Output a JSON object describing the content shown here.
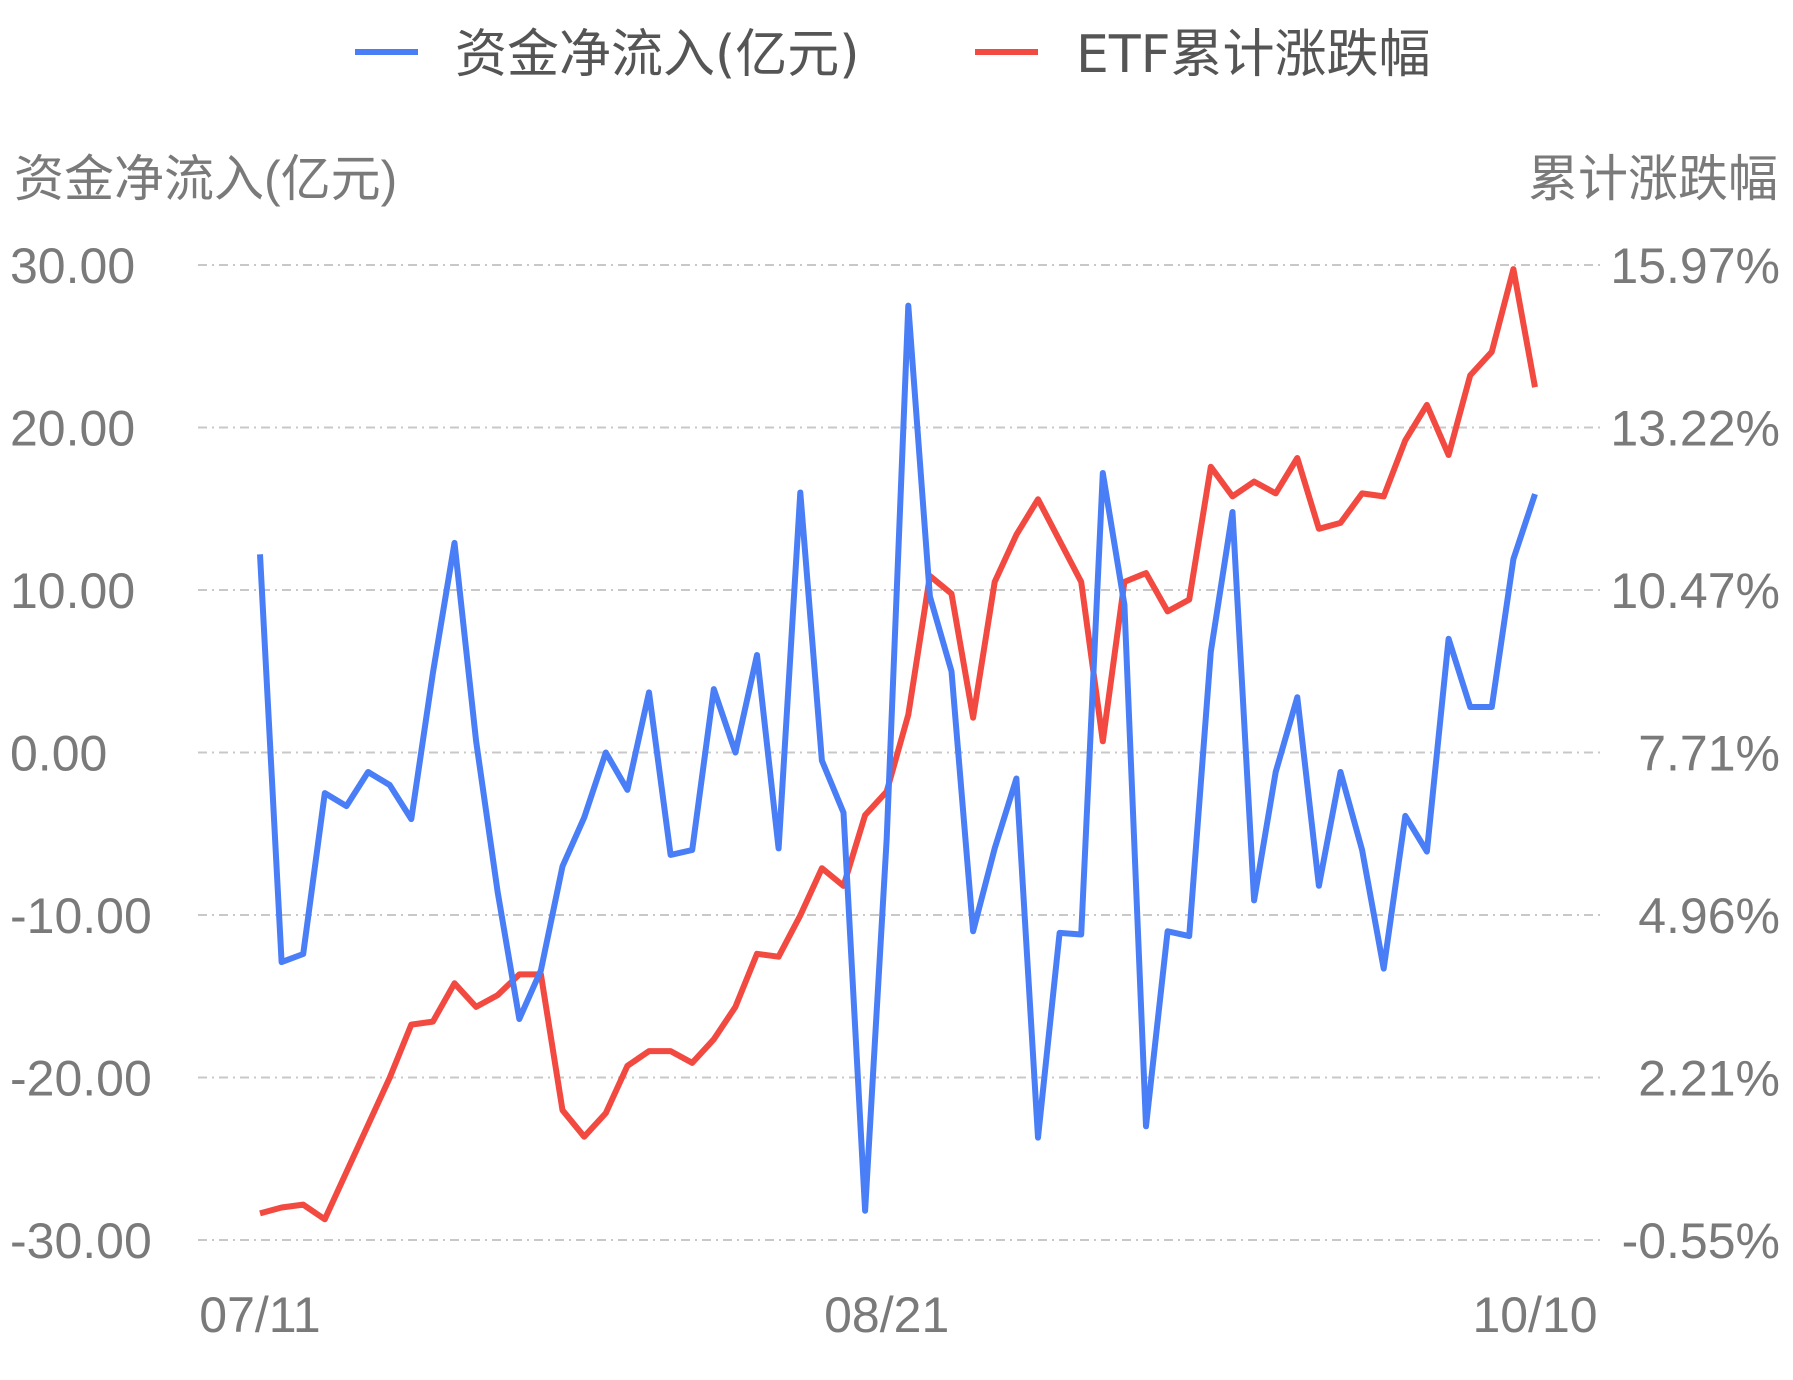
{
  "chart_data": {
    "type": "line",
    "legend": {
      "position": "top-center",
      "items": [
        {
          "name": "资金净流入(亿元)",
          "color": "#4a7ef7"
        },
        {
          "name": "ETF累计涨跌幅",
          "color": "#f24a40"
        }
      ]
    },
    "y_left": {
      "label": "资金净流入(亿元)",
      "ticks": [
        "30.00",
        "20.00",
        "10.00",
        "0.00",
        "-10.00",
        "-20.00",
        "-30.00"
      ],
      "range": [
        -30,
        30
      ]
    },
    "y_right": {
      "label": "累计涨跌幅",
      "ticks": [
        "15.97%",
        "13.22%",
        "10.47%",
        "7.71%",
        "4.96%",
        "2.21%",
        "-0.55%"
      ],
      "range": [
        -0.55,
        15.97
      ]
    },
    "x_ticks": [
      {
        "label": "07/11",
        "index": 0
      },
      {
        "label": "08/21",
        "index": 29
      },
      {
        "label": "10/10",
        "index": 59
      }
    ],
    "grid": true,
    "series": [
      {
        "name": "资金净流入(亿元)",
        "color": "#4a7ef7",
        "axis": "left",
        "values": [
          12.2,
          -12.9,
          -12.4,
          -2.5,
          -3.3,
          -1.2,
          -2.0,
          -4.1,
          4.9,
          12.9,
          0.7,
          -8.6,
          -16.4,
          -13.4,
          -7.0,
          -4.0,
          0.0,
          -2.3,
          3.7,
          -6.3,
          -6.0,
          3.9,
          0.0,
          6.0,
          -5.9,
          16.0,
          -0.5,
          -3.7,
          -28.2,
          -5.3,
          27.5,
          9.6,
          5.0,
          -11.0,
          -5.9,
          -1.6,
          -23.7,
          -11.1,
          -11.2,
          17.2,
          9.1,
          -23.0,
          -11.0,
          -11.3,
          6.2,
          14.8,
          -9.1,
          -1.2,
          3.4,
          -8.2,
          -1.2,
          -6.0,
          -13.3,
          -3.9,
          -6.1,
          7.0,
          2.8,
          2.8,
          11.9,
          15.9
        ]
      },
      {
        "name": "ETF累计涨跌幅",
        "color": "#f24a40",
        "axis": "right",
        "values": [
          -0.1,
          0.0,
          0.05,
          -0.2,
          0.6,
          1.4,
          2.2,
          3.1,
          3.15,
          3.8,
          3.4,
          3.6,
          3.95,
          3.95,
          1.65,
          1.2,
          1.6,
          2.4,
          2.65,
          2.65,
          2.45,
          2.85,
          3.4,
          4.3,
          4.25,
          4.95,
          5.75,
          5.45,
          6.65,
          7.05,
          8.35,
          10.7,
          10.4,
          8.3,
          10.6,
          11.4,
          12.0,
          11.3,
          10.6,
          7.9,
          10.6,
          10.75,
          10.1,
          10.3,
          12.55,
          12.05,
          12.3,
          12.1,
          12.7,
          11.5,
          11.6,
          12.1,
          12.05,
          13.0,
          13.6,
          12.75,
          14.1,
          14.5,
          15.9,
          13.9
        ]
      }
    ]
  }
}
